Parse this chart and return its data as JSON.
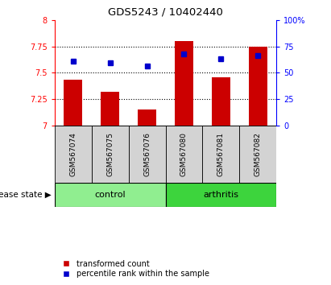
{
  "title": "GDS5243 / 10402440",
  "samples": [
    "GSM567074",
    "GSM567075",
    "GSM567076",
    "GSM567080",
    "GSM567081",
    "GSM567082"
  ],
  "bar_values": [
    7.43,
    7.32,
    7.15,
    7.8,
    7.46,
    7.75
  ],
  "bar_base": 7.0,
  "scatter_values": [
    7.61,
    7.59,
    7.56,
    7.68,
    7.63,
    7.66
  ],
  "ylim_left": [
    7.0,
    8.0
  ],
  "ylim_right": [
    0,
    100
  ],
  "yticks_left": [
    7.0,
    7.25,
    7.5,
    7.75,
    8.0
  ],
  "ytick_labels_left": [
    "7",
    "7.25",
    "7.5",
    "7.75",
    "8"
  ],
  "yticks_right": [
    0,
    25,
    50,
    75,
    100
  ],
  "ytick_labels_right": [
    "0",
    "25",
    "50",
    "75",
    "100%"
  ],
  "grid_lines": [
    7.25,
    7.5,
    7.75
  ],
  "bar_color": "#cc0000",
  "scatter_color": "#0000cc",
  "control_color": "#90ee90",
  "arthritis_color": "#3dd43d",
  "label_bg_color": "#d3d3d3",
  "control_label": "control",
  "arthritis_label": "arthritis",
  "disease_state_label": "disease state",
  "legend_bar_label": "transformed count",
  "legend_scatter_label": "percentile rank within the sample"
}
